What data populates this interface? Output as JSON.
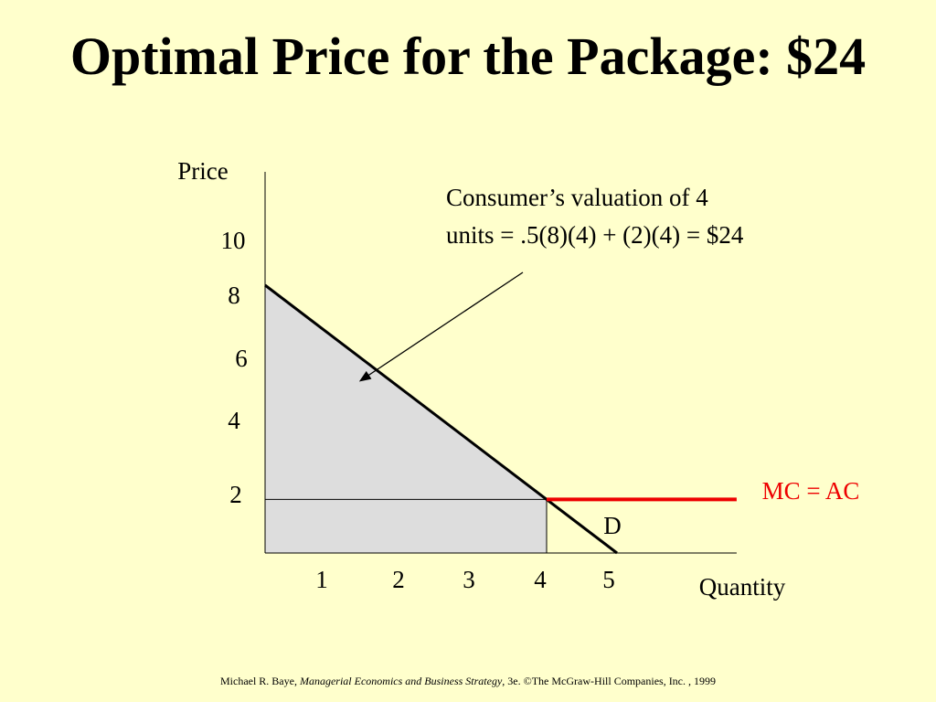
{
  "slide": {
    "title": "Optimal Price for the Package: $24",
    "footer": {
      "author": "Michael R. Baye, ",
      "book": "Managerial Economics and Business Strategy",
      "rest": ", 3e. ©The McGraw-Hill Companies,  Inc. , 1999"
    }
  },
  "chart_data": {
    "type": "line",
    "xlabel": "Quantity",
    "ylabel": "Price",
    "x_ticks": [
      1,
      2,
      3,
      4,
      5
    ],
    "y_ticks": [
      2,
      4,
      6,
      8,
      10
    ],
    "xlim": [
      0,
      6.7
    ],
    "ylim": [
      0,
      11.6
    ],
    "demand": {
      "name": "D",
      "x": [
        0,
        5
      ],
      "y": [
        10,
        0
      ]
    },
    "mc": {
      "name": "MC = AC",
      "y": 2,
      "x_range": [
        4,
        6.7
      ],
      "color": "#ee0000"
    },
    "shaded_area": {
      "vertices": [
        [
          0,
          10
        ],
        [
          4,
          2
        ],
        [
          4,
          0
        ],
        [
          0,
          0
        ]
      ],
      "color": "#dddddd"
    },
    "annotation": {
      "line1": "Consumer’s valuation of 4",
      "line2": "units = .5(8)(4) + (2)(4) = $24"
    }
  }
}
